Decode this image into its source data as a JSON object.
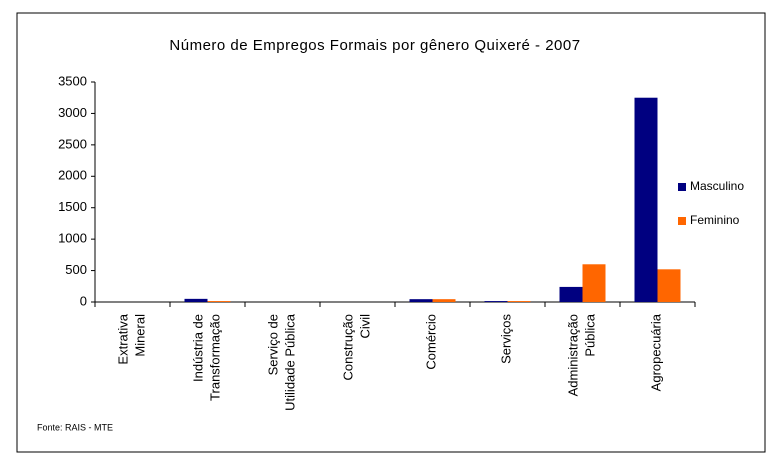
{
  "chart_data": {
    "type": "bar",
    "title": "Número de Empregos Formais por gênero Quixeré - 2007",
    "categories": [
      "Extrativa Mineral",
      "Indústria de Transformação",
      "Serviço de Utilidade Pública",
      "Construção Civil",
      "Comércio",
      "Serviços",
      "Administração Pública",
      "Agropecuária"
    ],
    "series": [
      {
        "name": "Masculino",
        "color": "#000080",
        "values": [
          0,
          50,
          0,
          0,
          45,
          15,
          240,
          3250
        ]
      },
      {
        "name": "Feminino",
        "color": "#ff6600",
        "values": [
          0,
          15,
          0,
          0,
          45,
          15,
          600,
          520
        ]
      }
    ],
    "ylim": [
      0,
      3500
    ],
    "yticks": [
      0,
      500,
      1000,
      1500,
      2000,
      2500,
      3000,
      3500
    ],
    "grid": false,
    "legend": "right",
    "source": "Fonte: RAIS - MTE"
  }
}
